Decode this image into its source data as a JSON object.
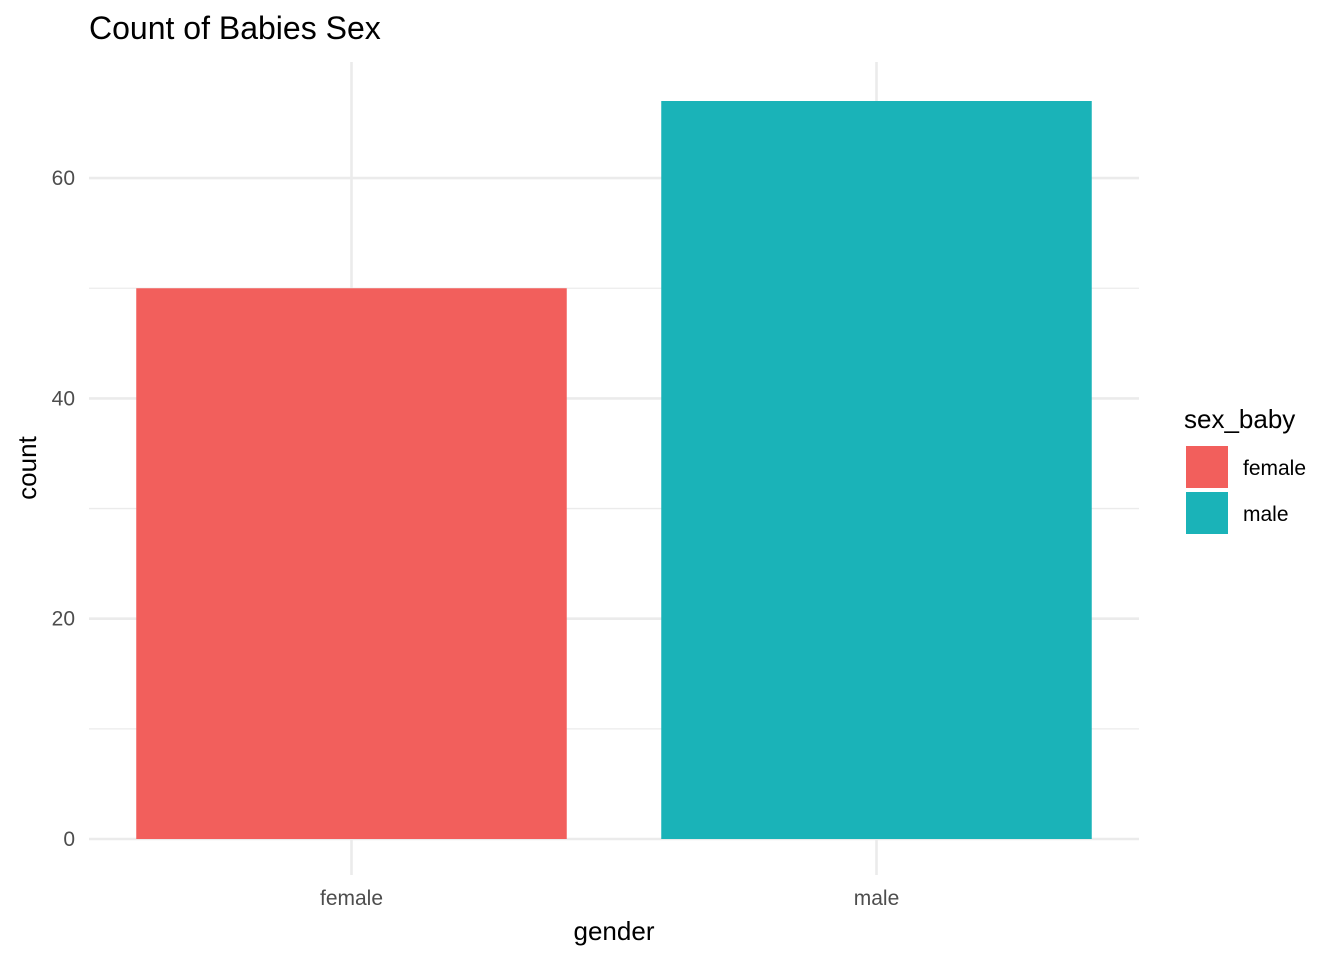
{
  "chart_data": {
    "type": "bar",
    "title": "Count of Babies Sex",
    "xlabel": "gender",
    "ylabel": "count",
    "categories": [
      "female",
      "male"
    ],
    "values": [
      50,
      67
    ],
    "ylim": [
      0,
      70
    ],
    "yticks": [
      0,
      20,
      40,
      60
    ],
    "yticks_labels": [
      "0",
      "20",
      "40",
      "60"
    ],
    "grid": true,
    "legend": {
      "title": "sex_baby",
      "placement": "right",
      "entries": [
        {
          "label": "female",
          "color": "#F8766D"
        },
        {
          "label": "male",
          "color": "#00BFC4"
        }
      ]
    },
    "colors": {
      "female": "#F25F5C",
      "male": "#1AB3B8"
    }
  }
}
